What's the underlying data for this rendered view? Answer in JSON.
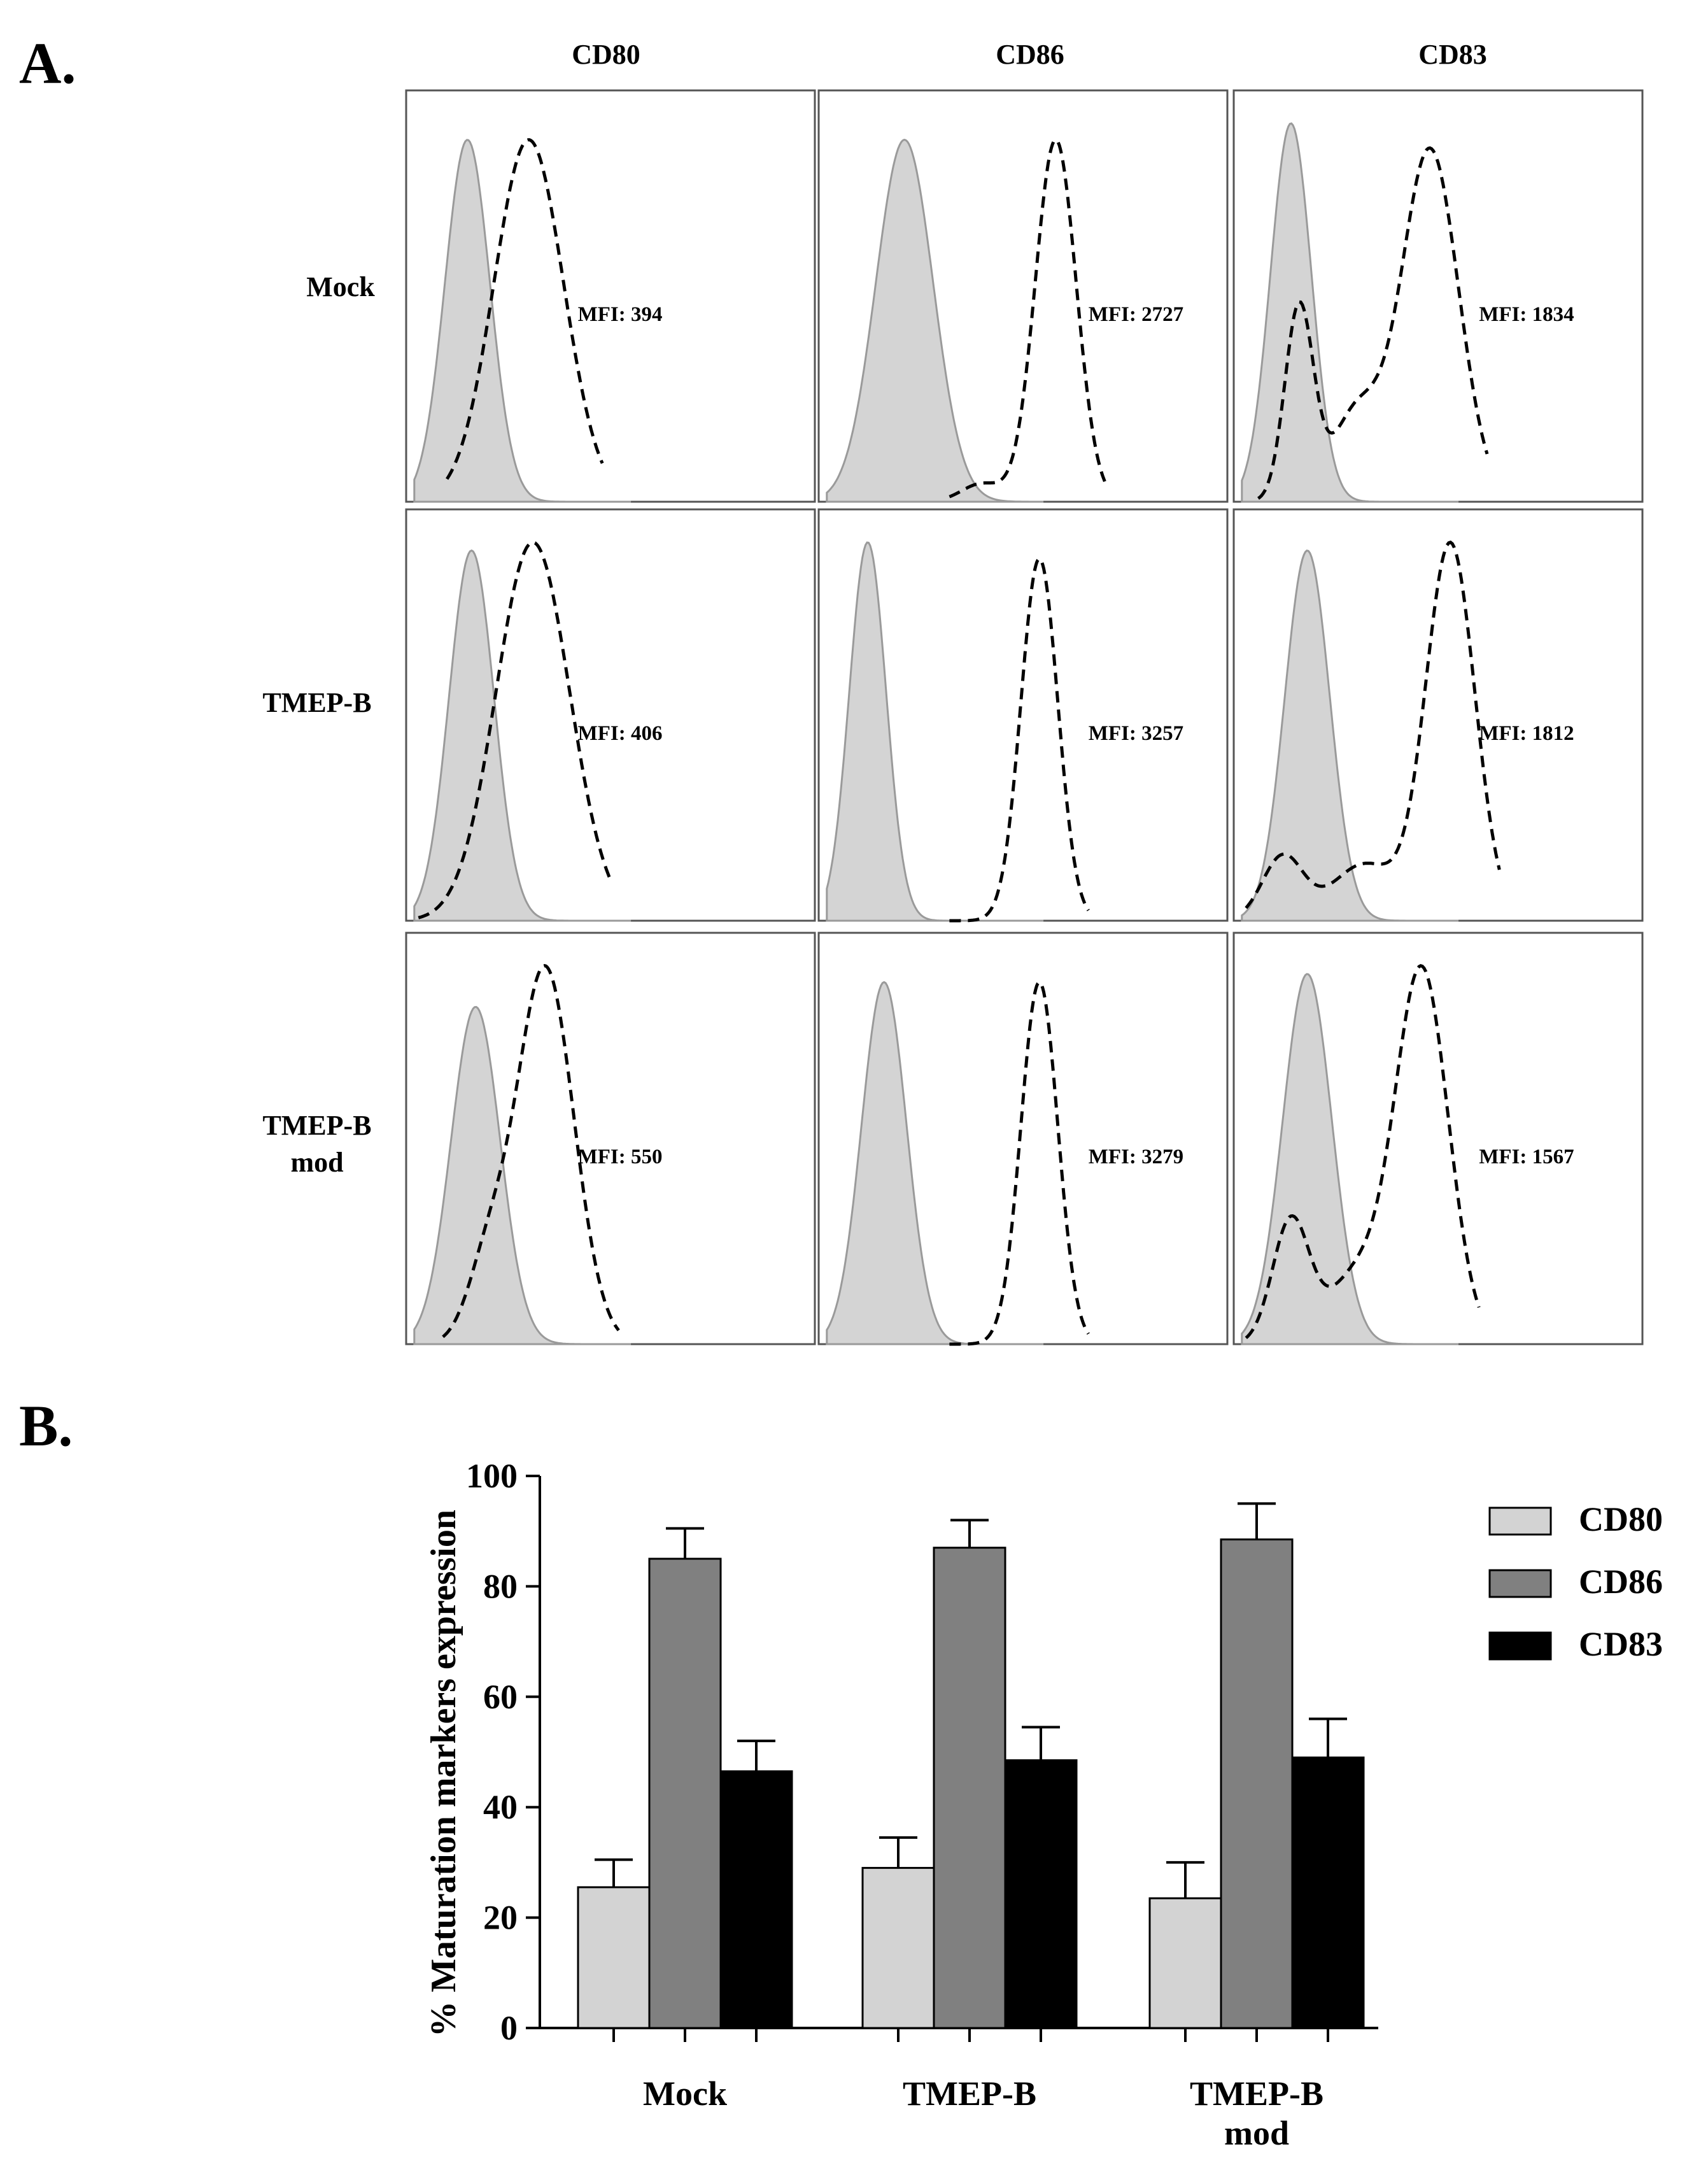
{
  "panel_a_label": "A.",
  "panel_b_label": "B.",
  "chart_data": [
    {
      "type": "histogram-grid",
      "columns": [
        "CD80",
        "CD86",
        "CD83"
      ],
      "rows": [
        {
          "label_lines": [
            "Mock"
          ]
        },
        {
          "label_lines": [
            "TMEP-B"
          ]
        },
        {
          "label_lines": [
            "TMEP-B",
            "mod"
          ]
        }
      ],
      "mfi": [
        [
          "MFI: 394",
          "MFI: 2727",
          "MFI: 1834"
        ],
        [
          "MFI: 406",
          "MFI: 3257",
          "MFI: 1812"
        ],
        [
          "MFI: 550",
          "MFI: 3279",
          "MFI: 1567"
        ]
      ],
      "series_styles": {
        "isotype": "filled gray",
        "stained": "dashed black"
      },
      "colors": {
        "filled": "#d4d4d4",
        "filled_edge": "#9a9a9a",
        "dashed": "#000000",
        "frame": "#555555"
      }
    },
    {
      "type": "bar",
      "categories": [
        [
          "Mock"
        ],
        [
          "TMEP-B"
        ],
        [
          "TMEP-B",
          "mod"
        ]
      ],
      "series": [
        {
          "name": "CD80",
          "color": "#d3d3d3",
          "values": [
            25.5,
            29,
            23.5
          ],
          "errors": [
            5,
            5.5,
            6.5
          ]
        },
        {
          "name": "CD86",
          "color": "#808080",
          "values": [
            85,
            87,
            88.5
          ],
          "errors": [
            5.5,
            5,
            6.5
          ]
        },
        {
          "name": "CD83",
          "color": "#000000",
          "values": [
            46.5,
            48.5,
            49
          ],
          "errors": [
            5.5,
            6,
            7
          ]
        }
      ],
      "ylabel": "% Maturation markers expression",
      "ylim": [
        0,
        100
      ],
      "yticks": [
        "0",
        "20",
        "40",
        "60",
        "80",
        "100"
      ],
      "legend_position": "top-right"
    }
  ]
}
